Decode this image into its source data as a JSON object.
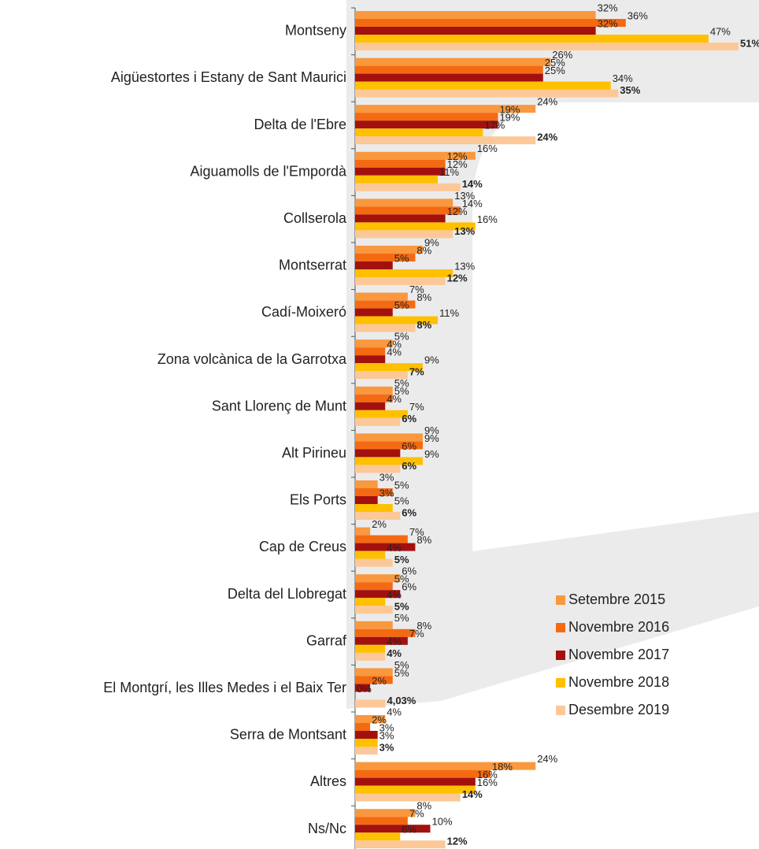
{
  "chart_data": {
    "type": "bar",
    "orientation": "horizontal",
    "categories": [
      "Montseny",
      "Aigüestortes i Estany de Sant Maurici",
      "Delta de l'Ebre",
      "Aiguamolls de l'Empordà",
      "Collserola",
      "Montserrat",
      "Cadí-Moixeró",
      "Zona volcànica de la Garrotxa",
      "Sant Llorenç de Munt",
      "Alt Pirineu",
      "Els Ports",
      "Cap de Creus",
      "Delta del Llobregat",
      "Garraf",
      "El Montgrí, les Illes Medes i el Baix Ter",
      "Serra de Montsant",
      "Altres",
      "Ns/Nc"
    ],
    "series": [
      {
        "name": "Setembre 2015",
        "color": "#f9983e",
        "values": [
          32,
          26,
          24,
          16,
          13,
          9,
          7,
          5,
          5,
          9,
          3,
          2,
          6,
          5,
          5,
          4,
          24,
          8
        ],
        "value_labels": [
          "32%",
          "26%",
          "24%",
          "16%",
          "13%",
          "9%",
          "7%",
          "5%",
          "5%",
          "9%",
          "3%",
          "2%",
          "6%",
          "5%",
          "5%",
          "4%",
          "24%",
          "8%"
        ]
      },
      {
        "name": "Novembre 2016",
        "color": "#f46a12",
        "values": [
          36,
          25,
          19,
          12,
          14,
          8,
          8,
          4,
          5,
          9,
          5,
          7,
          5,
          8,
          5,
          2,
          18,
          7
        ],
        "value_labels": [
          "36%",
          "25%",
          "19%",
          "12%",
          "14%",
          "8%",
          "8%",
          "4%",
          "5%",
          "9%",
          "5%",
          "7%",
          "5%",
          "8%",
          "5%",
          "2%",
          "18%",
          "7%"
        ]
      },
      {
        "name": "Novembre 2017",
        "color": "#a3110f",
        "values": [
          32,
          25,
          19,
          12,
          12,
          5,
          5,
          4,
          4,
          6,
          3,
          8,
          6,
          7,
          2,
          3,
          16,
          10
        ],
        "value_labels": [
          "32%",
          "25%",
          "19%",
          "12%",
          "12%",
          "5%",
          "5%",
          "4%",
          "4%",
          "6%",
          "3%",
          "8%",
          "6%",
          "7%",
          "2%",
          "3%",
          "16%",
          "10%"
        ]
      },
      {
        "name": "Novembre 2018",
        "color": "#ffc000",
        "values": [
          47,
          34,
          17,
          11,
          16,
          13,
          11,
          9,
          7,
          9,
          5,
          4,
          4,
          4,
          0,
          3,
          16,
          6
        ],
        "value_labels": [
          "47%",
          "34%",
          "17%",
          "11%",
          "16%",
          "13%",
          "11%",
          "9%",
          "7%",
          "9%",
          "5%",
          "4%",
          "4%",
          "4%",
          "0%",
          "3%",
          "16%",
          "6%"
        ]
      },
      {
        "name": "Desembre 2019",
        "color": "#fcc897",
        "values": [
          51,
          35,
          24,
          14,
          13,
          12,
          8,
          7,
          6,
          6,
          6,
          5,
          5,
          4,
          4.03,
          3,
          14,
          12
        ],
        "value_labels": [
          "51%",
          "35%",
          "24%",
          "14%",
          "13%",
          "12%",
          "8%",
          "7%",
          "6%",
          "6%",
          "6%",
          "5%",
          "5%",
          "4%",
          "4,03%",
          "3%",
          "14%",
          "12%"
        ]
      }
    ]
  }
}
